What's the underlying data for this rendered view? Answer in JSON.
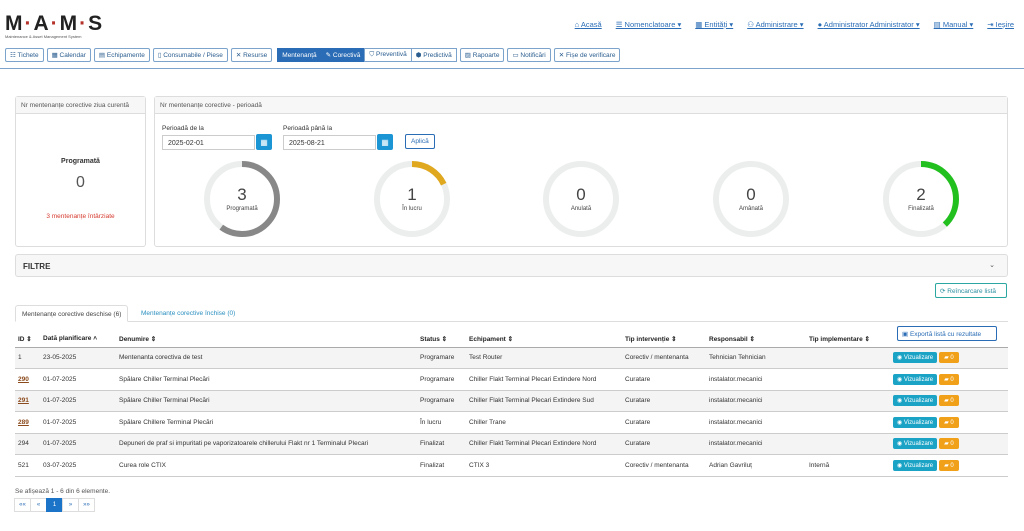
{
  "logo": {
    "text": "MAMS",
    "subtitle": "Maintenance & Asset Management System"
  },
  "nav": [
    {
      "icon": "home-icon",
      "label": "Acasă"
    },
    {
      "icon": "list-icon",
      "label": "Nomenclatoare ▾"
    },
    {
      "icon": "entity-icon",
      "label": "Entități ▾"
    },
    {
      "icon": "users-icon",
      "label": "Administrare ▾"
    },
    {
      "icon": "user-icon",
      "label": "Administrator Administrator ▾"
    },
    {
      "icon": "manual-icon",
      "label": "Manual ▾"
    },
    {
      "icon": "logout-icon",
      "label": "Ieșire"
    }
  ],
  "toolbar": {
    "tichete": "☷ Tichete",
    "calendar": "▦ Calendar",
    "echipamente": "▤ Echipamente",
    "consumabile": "▯ Consumabile / Piese",
    "resurse": "✕ Resurse",
    "mentenanta": "Mentenanță",
    "corectiva": "✎ Corectivă",
    "preventiva": "⛉ Preventivă",
    "predictiva": "⬢ Predictivă",
    "rapoarte": "▨ Rapoarte",
    "notificari": "▭ Notificări",
    "fise": "✕ Fișe de verificare"
  },
  "today_card": {
    "header": "Nr mentenanțe corective ziua curentă",
    "label": "Programată",
    "value": "0",
    "late": "3 mentenanțe întârziate"
  },
  "period_card": {
    "header": "Nr mentenanțe corective - perioadă",
    "from_label": "Perioadă de la",
    "from_value": "2025-02-01",
    "to_label": "Perioadă până la",
    "to_value": "2025-08-21",
    "apply": "Aplică",
    "gauges": [
      {
        "value": "3",
        "label": "Programată",
        "fraction": 0.6,
        "color": "#888888"
      },
      {
        "value": "1",
        "label": "În lucru",
        "fraction": 0.18,
        "color": "#e0a81e"
      },
      {
        "value": "0",
        "label": "Anulată",
        "fraction": 0,
        "color": "#888888"
      },
      {
        "value": "0",
        "label": "Amânată",
        "fraction": 0,
        "color": "#888888"
      },
      {
        "value": "2",
        "label": "Finalizată",
        "fraction": 0.38,
        "color": "#22c01e"
      }
    ]
  },
  "filters": {
    "title": "FILTRE",
    "chevron": "⌄"
  },
  "reload": "⟳ Reîncarcare listă",
  "tabs": {
    "open": "Mentenanțe corective deschise (6)",
    "closed": "Mentenanțe corective închise (0)"
  },
  "export": "▣ Exportă listă cu rezultate",
  "table": {
    "headers": [
      "ID ⇕",
      "Dată planificare ˄",
      "Denumire ⇕",
      "Status ⇕",
      "Echipament ⇕",
      "Tip intervenție ⇕",
      "Responsabil ⇕",
      "Tip implementare ⇕",
      ""
    ],
    "view_label": "◉ Vizualizare",
    "rows": [
      {
        "id": "1",
        "link": false,
        "date": "23-05-2025",
        "name": "Mentenanta corectiva de test",
        "status": "Programare",
        "equip": "Test Router",
        "type": "Corectiv / mentenanta",
        "resp": "Tehnician Tehnician",
        "impl": "",
        "count": "▰ 0"
      },
      {
        "id": "290",
        "link": true,
        "date": "01-07-2025",
        "name": "Spălare Chiller Terminal Plecări",
        "status": "Programare",
        "equip": "Chiller Flakt Terminal Plecari Extindere Nord",
        "type": "Curatare",
        "resp": "instalator.mecanici",
        "impl": "",
        "count": "▰ 0"
      },
      {
        "id": "291",
        "link": true,
        "date": "01-07-2025",
        "name": "Spălare Chiller Terminal Plecări",
        "status": "Programare",
        "equip": "Chiller Flakt Terminal Plecari Extindere Sud",
        "type": "Curatare",
        "resp": "instalator.mecanici",
        "impl": "",
        "count": "▰ 0"
      },
      {
        "id": "289",
        "link": true,
        "date": "01-07-2025",
        "name": "Spălare Chillere Terminal Plecări",
        "status": "În lucru",
        "equip": "Chiller Trane",
        "type": "Curatare",
        "resp": "instalator.mecanici",
        "impl": "",
        "count": "▰ 0"
      },
      {
        "id": "294",
        "link": false,
        "date": "01-07-2025",
        "name": "Depuneri de praf si impuritati pe vaporizatoarele chillerului Flakt nr 1 Terminalul Plecari",
        "status": "Finalizat",
        "equip": "Chiller Flakt Terminal Plecari Extindere Nord",
        "type": "Curatare",
        "resp": "instalator.mecanici",
        "impl": "",
        "count": "▰ 0"
      },
      {
        "id": "521",
        "link": false,
        "date": "03-07-2025",
        "name": "Curea role CTIX",
        "status": "Finalizat",
        "equip": "CTIX 3",
        "type": "Corectiv / mentenanta",
        "resp": "Adrian Gavriluț",
        "impl": "Internă",
        "count": "▰ 0"
      }
    ]
  },
  "info": "Se afișează 1 - 6 din 6 elemente.",
  "pager": [
    "««",
    "«",
    "1",
    "»",
    "»»"
  ]
}
